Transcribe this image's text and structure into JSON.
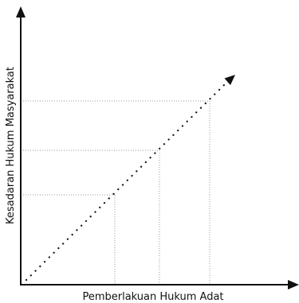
{
  "diagram": {
    "x_axis_label": "Pemberlakuan Hukum Adat",
    "y_axis_label": "Kesadaran Hukum Masyarakat",
    "guide_points": [
      {
        "x": 1,
        "y": 1
      },
      {
        "x": 2,
        "y": 2
      },
      {
        "x": 3,
        "y": 3
      }
    ],
    "diagonal_style": "dotted",
    "guide_style": "dotted",
    "colors": {
      "axis": "#111111",
      "diagonal": "#111111",
      "guides": "#9a9a9a",
      "background": "#ffffff"
    }
  }
}
